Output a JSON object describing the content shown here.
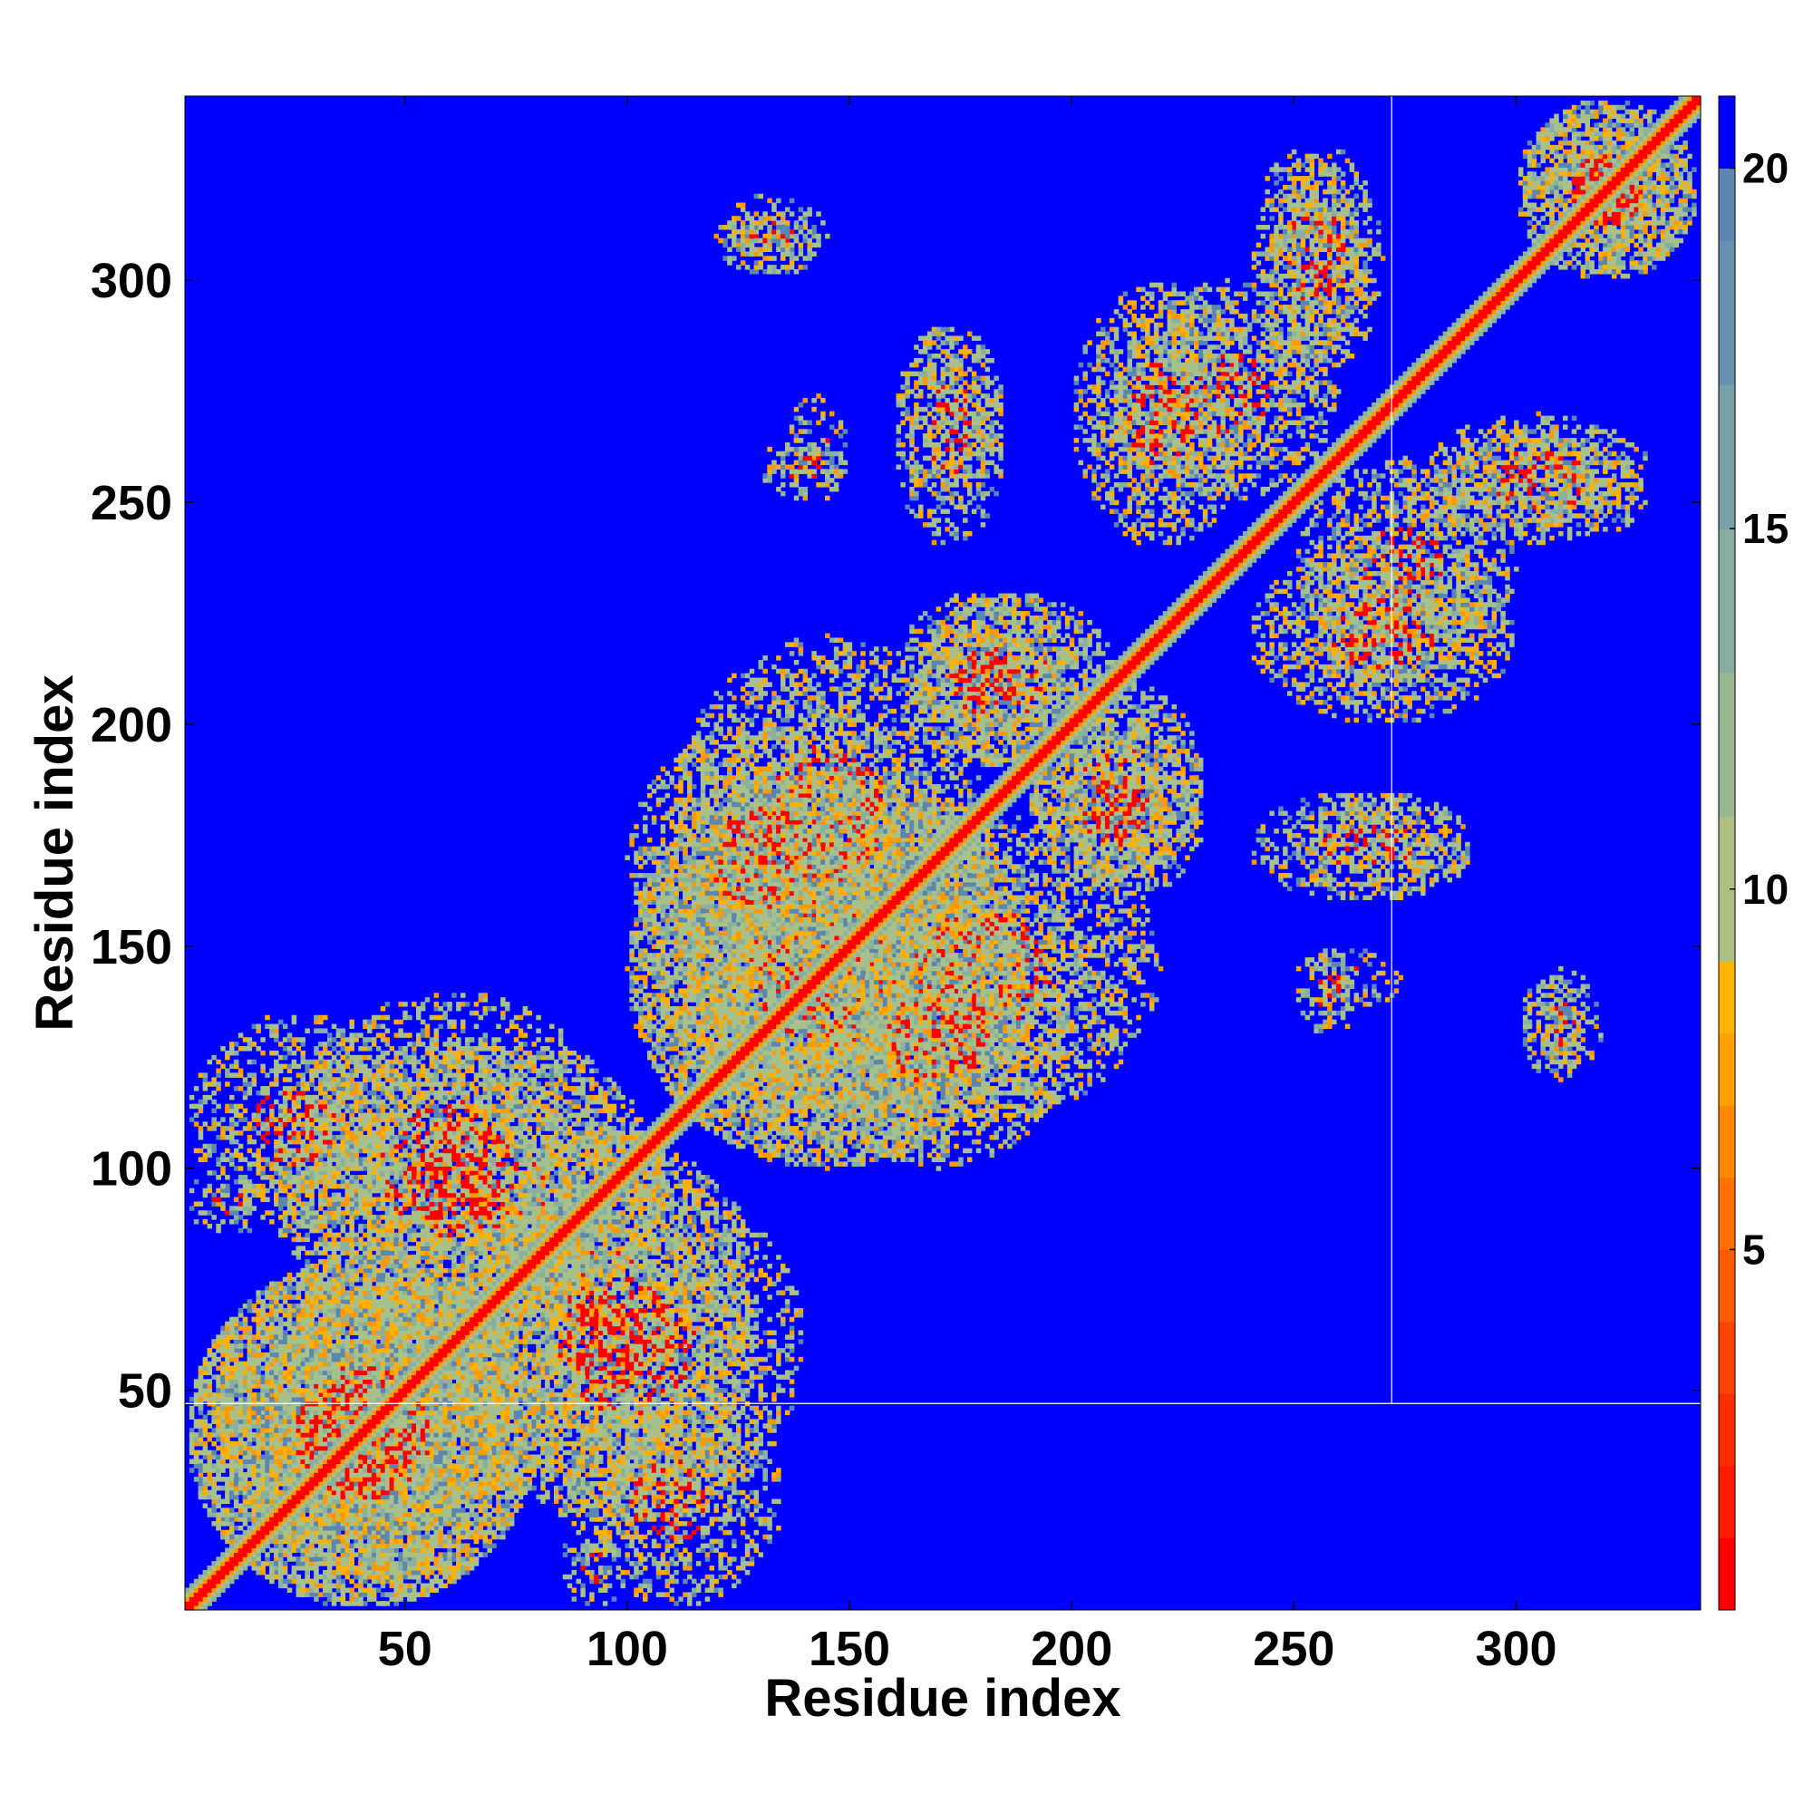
{
  "chart_data": {
    "type": "heatmap",
    "title": "",
    "xlabel": "Residue index",
    "ylabel": "Residue index",
    "n_residues": 341,
    "xlim": [
      1,
      341
    ],
    "ylim": [
      1,
      341
    ],
    "xticks": [
      50,
      100,
      150,
      200,
      250,
      300
    ],
    "yticks": [
      50,
      100,
      150,
      200,
      250,
      300
    ],
    "colorbar": {
      "ticks": [
        5,
        10,
        15,
        20
      ],
      "range": [
        0,
        21
      ],
      "colors": {
        "near": "#ff0000",
        "mid": "#ff9900",
        "contact_edge": "#ffb000",
        "green": "#a8c08a",
        "teal": "#8ab0a0",
        "steel": "#5a86b0",
        "far": "#0000ff"
      }
    },
    "gaps": {
      "x_residue": 272,
      "y_residue": 47
    },
    "contact_regions": [
      {
        "x": [
          1,
          80
        ],
        "y": [
          1,
          80
        ],
        "strength": 0.9
      },
      {
        "x": [
          100,
          190
        ],
        "y": [
          100,
          190
        ],
        "strength": 0.8
      },
      {
        "x": [
          20,
          110
        ],
        "y": [
          60,
          130
        ],
        "strength": 0.6
      },
      {
        "x": [
          60,
          140
        ],
        "y": [
          20,
          100
        ],
        "strength": 0.6
      },
      {
        "x": [
          85,
          135
        ],
        "y": [
          1,
          50
        ],
        "strength": 0.5
      },
      {
        "x": [
          110,
          180
        ],
        "y": [
          140,
          220
        ],
        "strength": 0.6
      },
      {
        "x": [
          140,
          200
        ],
        "y": [
          100,
          160
        ],
        "strength": 0.55
      },
      {
        "x": [
          165,
          210
        ],
        "y": [
          190,
          230
        ],
        "strength": 0.6
      },
      {
        "x": [
          190,
          230
        ],
        "y": [
          160,
          200
        ],
        "strength": 0.6
      },
      {
        "x": [
          210,
          260
        ],
        "y": [
          250,
          300
        ],
        "strength": 0.6
      },
      {
        "x": [
          240,
          300
        ],
        "y": [
          200,
          240
        ],
        "strength": 0.6
      },
      {
        "x": [
          250,
          290
        ],
        "y": [
          160,
          185
        ],
        "strength": 0.5
      },
      {
        "x": [
          280,
          330
        ],
        "y": [
          240,
          265
        ],
        "strength": 0.55
      },
      {
        "x": [
          245,
          270
        ],
        "y": [
          280,
          330
        ],
        "strength": 0.55
      },
      {
        "x": [
          300,
          341
        ],
        "y": [
          300,
          341
        ],
        "strength": 0.7
      },
      {
        "x": [
          120,
          145
        ],
        "y": [
          300,
          320
        ],
        "strength": 0.45
      },
      {
        "x": [
          160,
          185
        ],
        "y": [
          240,
          290
        ],
        "strength": 0.45
      },
      {
        "x": [
          135,
          150
        ],
        "y": [
          250,
          275
        ],
        "strength": 0.4
      },
      {
        "x": [
          305,
          315
        ],
        "y": [
          120,
          145
        ],
        "strength": 0.45
      },
      {
        "x": [
          250,
          265
        ],
        "y": [
          130,
          150
        ],
        "strength": 0.4
      },
      {
        "x": [
          1,
          20
        ],
        "y": [
          85,
          100
        ],
        "strength": 0.4
      }
    ]
  }
}
